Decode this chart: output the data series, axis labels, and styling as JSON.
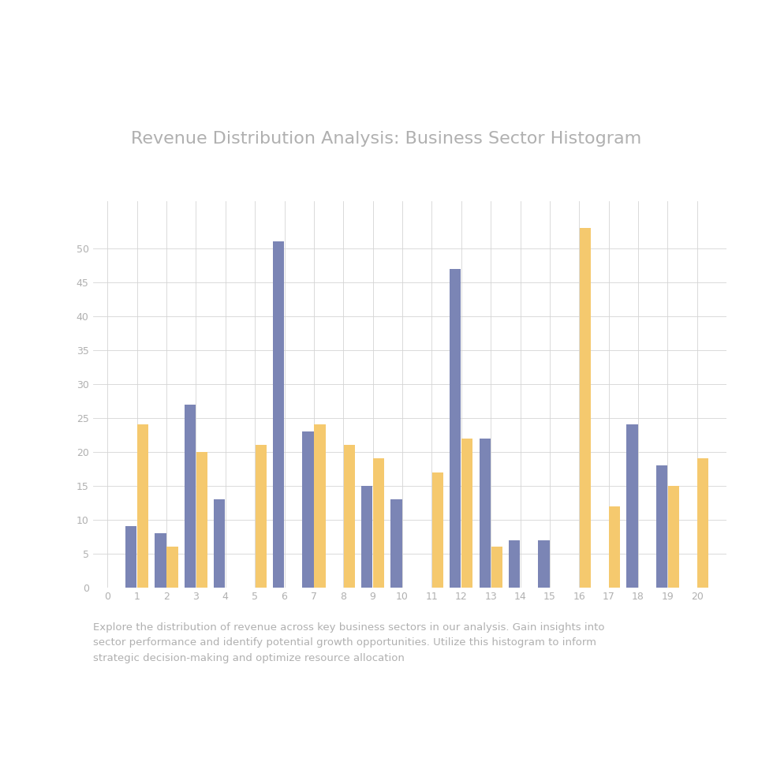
{
  "title": "Revenue Distribution Analysis: Business Sector Histogram",
  "subtitle": "Explore the distribution of revenue across key business sectors in our analysis. Gain insights into\nsector performance and identify potential growth opportunities. Utilize this histogram to inform\nstrategic decision-making and optimize resource allocation",
  "background_color": "#ffffff",
  "bar_color_blue": "#7b85b5",
  "bar_color_yellow": "#f5c96e",
  "title_color": "#b0b0b0",
  "subtitle_color": "#b0b0b0",
  "grid_color": "#d5d5d5",
  "tick_color": "#b0b0b0",
  "xlim": [
    -0.5,
    21
  ],
  "ylim": [
    0,
    57
  ],
  "yticks": [
    0,
    5,
    10,
    15,
    20,
    25,
    30,
    35,
    40,
    45,
    50
  ],
  "xticks": [
    0,
    1,
    2,
    3,
    4,
    5,
    6,
    7,
    8,
    9,
    10,
    11,
    12,
    13,
    14,
    15,
    16,
    17,
    18,
    19,
    20
  ],
  "blue_bars": {
    "x": [
      1,
      2,
      3,
      4,
      6,
      7,
      9,
      10,
      12,
      13,
      14,
      15,
      18,
      19
    ],
    "height": [
      9,
      8,
      27,
      13,
      51,
      23,
      15,
      13,
      47,
      22,
      7,
      7,
      24,
      18
    ]
  },
  "yellow_bars": {
    "x": [
      1,
      2,
      3,
      5,
      7,
      8,
      9,
      11,
      12,
      13,
      16,
      17,
      19,
      20
    ],
    "height": [
      24,
      6,
      20,
      21,
      24,
      21,
      19,
      17,
      22,
      6,
      53,
      12,
      15,
      19
    ]
  },
  "bar_width": 0.38,
  "title_fontsize": 16,
  "subtitle_fontsize": 9.5,
  "tick_fontsize": 9
}
